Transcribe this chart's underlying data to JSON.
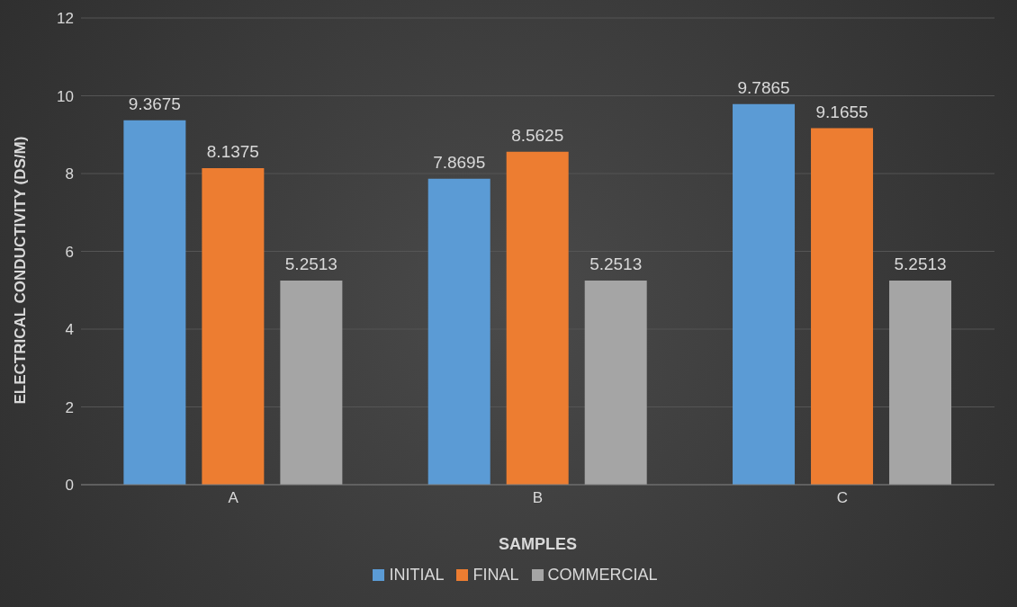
{
  "chart_data": {
    "type": "bar",
    "xlabel": "SAMPLES",
    "ylabel": "ELECTRICAL CONDUCTIVITY (DS/M)",
    "categories": [
      "A",
      "B",
      "C"
    ],
    "series": [
      {
        "name": "INITIAL",
        "color": "#5b9bd5",
        "values": [
          9.3675,
          7.8695,
          9.7865
        ]
      },
      {
        "name": "FINAL",
        "color": "#ed7d31",
        "values": [
          8.1375,
          8.5625,
          9.1655
        ]
      },
      {
        "name": "COMMERCIAL",
        "color": "#a5a5a5",
        "values": [
          5.2513,
          5.2513,
          5.2513
        ]
      }
    ],
    "ylim": [
      0,
      12
    ],
    "yticks": [
      0,
      2,
      4,
      6,
      8,
      10,
      12
    ],
    "grid": "y",
    "legend": "bottom",
    "data_labels": true
  }
}
